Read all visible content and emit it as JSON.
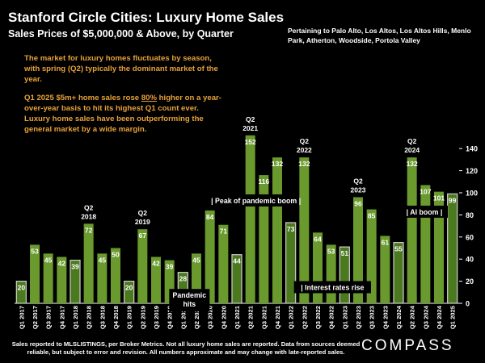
{
  "header": {
    "title": "Stanford Circle Cities:  Luxury Home Sales",
    "subtitle": "Sales Prices of $5,000,000 & Above, by Quarter",
    "pertaining": "Pertaining to Palo Alto, Los Altos, Los Altos Hills, Menlo Park, Atherton, Woodside, Portola Valley"
  },
  "commentary": {
    "p1": "The market for luxury homes fluctuates by season, with spring (Q2) typically the dominant market of the year.",
    "p2_before": "Q1 2025 $5m+ home sales rose ",
    "p2_underlined": "80%",
    "p2_after": " higher on a year-over-year basis to hit its highest Q1 count ever. Luxury home sales have been outperforming the general market by a wide margin."
  },
  "footer": {
    "note": "Sales reported to MLSLISTINGS, per Broker Metrics. Not all luxury home sales are reported. Data from sources deemed reliable, but subject to error and revision. All numbers approximate and may change with late-reported sales.",
    "brand": "COMPASS"
  },
  "colors": {
    "background": "#000000",
    "bar_green": "#6a9a2e",
    "bar_green_dark": "#4b7a1e",
    "commentary_orange": "#e8a238",
    "text": "#ffffff"
  },
  "chart_data": {
    "type": "bar",
    "title": "Stanford Circle Cities:  Luxury Home Sales",
    "subtitle": "Sales Prices of $5,000,000 & Above, by Quarter",
    "xlabel": "",
    "ylabel": "",
    "ylim": [
      0,
      150
    ],
    "yticks": [
      0,
      20,
      40,
      60,
      80,
      100,
      120,
      140
    ],
    "y_axis_side": "right",
    "grid": false,
    "legend": "none",
    "categories": [
      "Q1 2017",
      "Q2 2017",
      "Q3 2017",
      "Q4 2017",
      "Q1 2018",
      "Q2 2018",
      "Q3 2018",
      "Q4 2018",
      "Q1 2019",
      "Q2 2019",
      "Q3 2019",
      "Q4 2019",
      "Q1 2020",
      "Q2 2020",
      "Q3 2020",
      "Q4 2020",
      "Q1 2021",
      "Q2 2021",
      "Q3 2021",
      "Q4 2021",
      "Q1 2022",
      "Q2 2022",
      "Q3 2022",
      "Q4 2022",
      "Q1 2023",
      "Q2 2023",
      "Q3 2023",
      "Q4 2023",
      "Q1 2024",
      "Q2 2024",
      "Q3 2024",
      "Q4 2024",
      "Q1 2025"
    ],
    "values": [
      20,
      53,
      45,
      42,
      39,
      72,
      45,
      50,
      20,
      67,
      42,
      39,
      28,
      45,
      84,
      71,
      44,
      152,
      116,
      132,
      73,
      132,
      64,
      53,
      51,
      96,
      85,
      61,
      55,
      132,
      107,
      101,
      99
    ],
    "highlighted_q1": [
      0,
      4,
      8,
      12,
      16,
      20,
      24,
      28,
      32
    ],
    "q2_callouts": [
      {
        "index": 5,
        "label": "Q2 2018"
      },
      {
        "index": 9,
        "label": "Q2 2019"
      },
      {
        "index": 17,
        "label": "Q2 2021"
      },
      {
        "index": 21,
        "label": "Q2 2022"
      },
      {
        "index": 25,
        "label": "Q2 2023"
      },
      {
        "index": 29,
        "label": "Q2 2024"
      }
    ],
    "annotations": [
      {
        "text": "| Peak of pandemic boom |",
        "value_level": 92
      },
      {
        "text": "Pandemic hits"
      },
      {
        "text": "| Interest rates rise",
        "value_level": 15
      },
      {
        "text": "| AI boom |",
        "value_level": 84
      }
    ]
  }
}
